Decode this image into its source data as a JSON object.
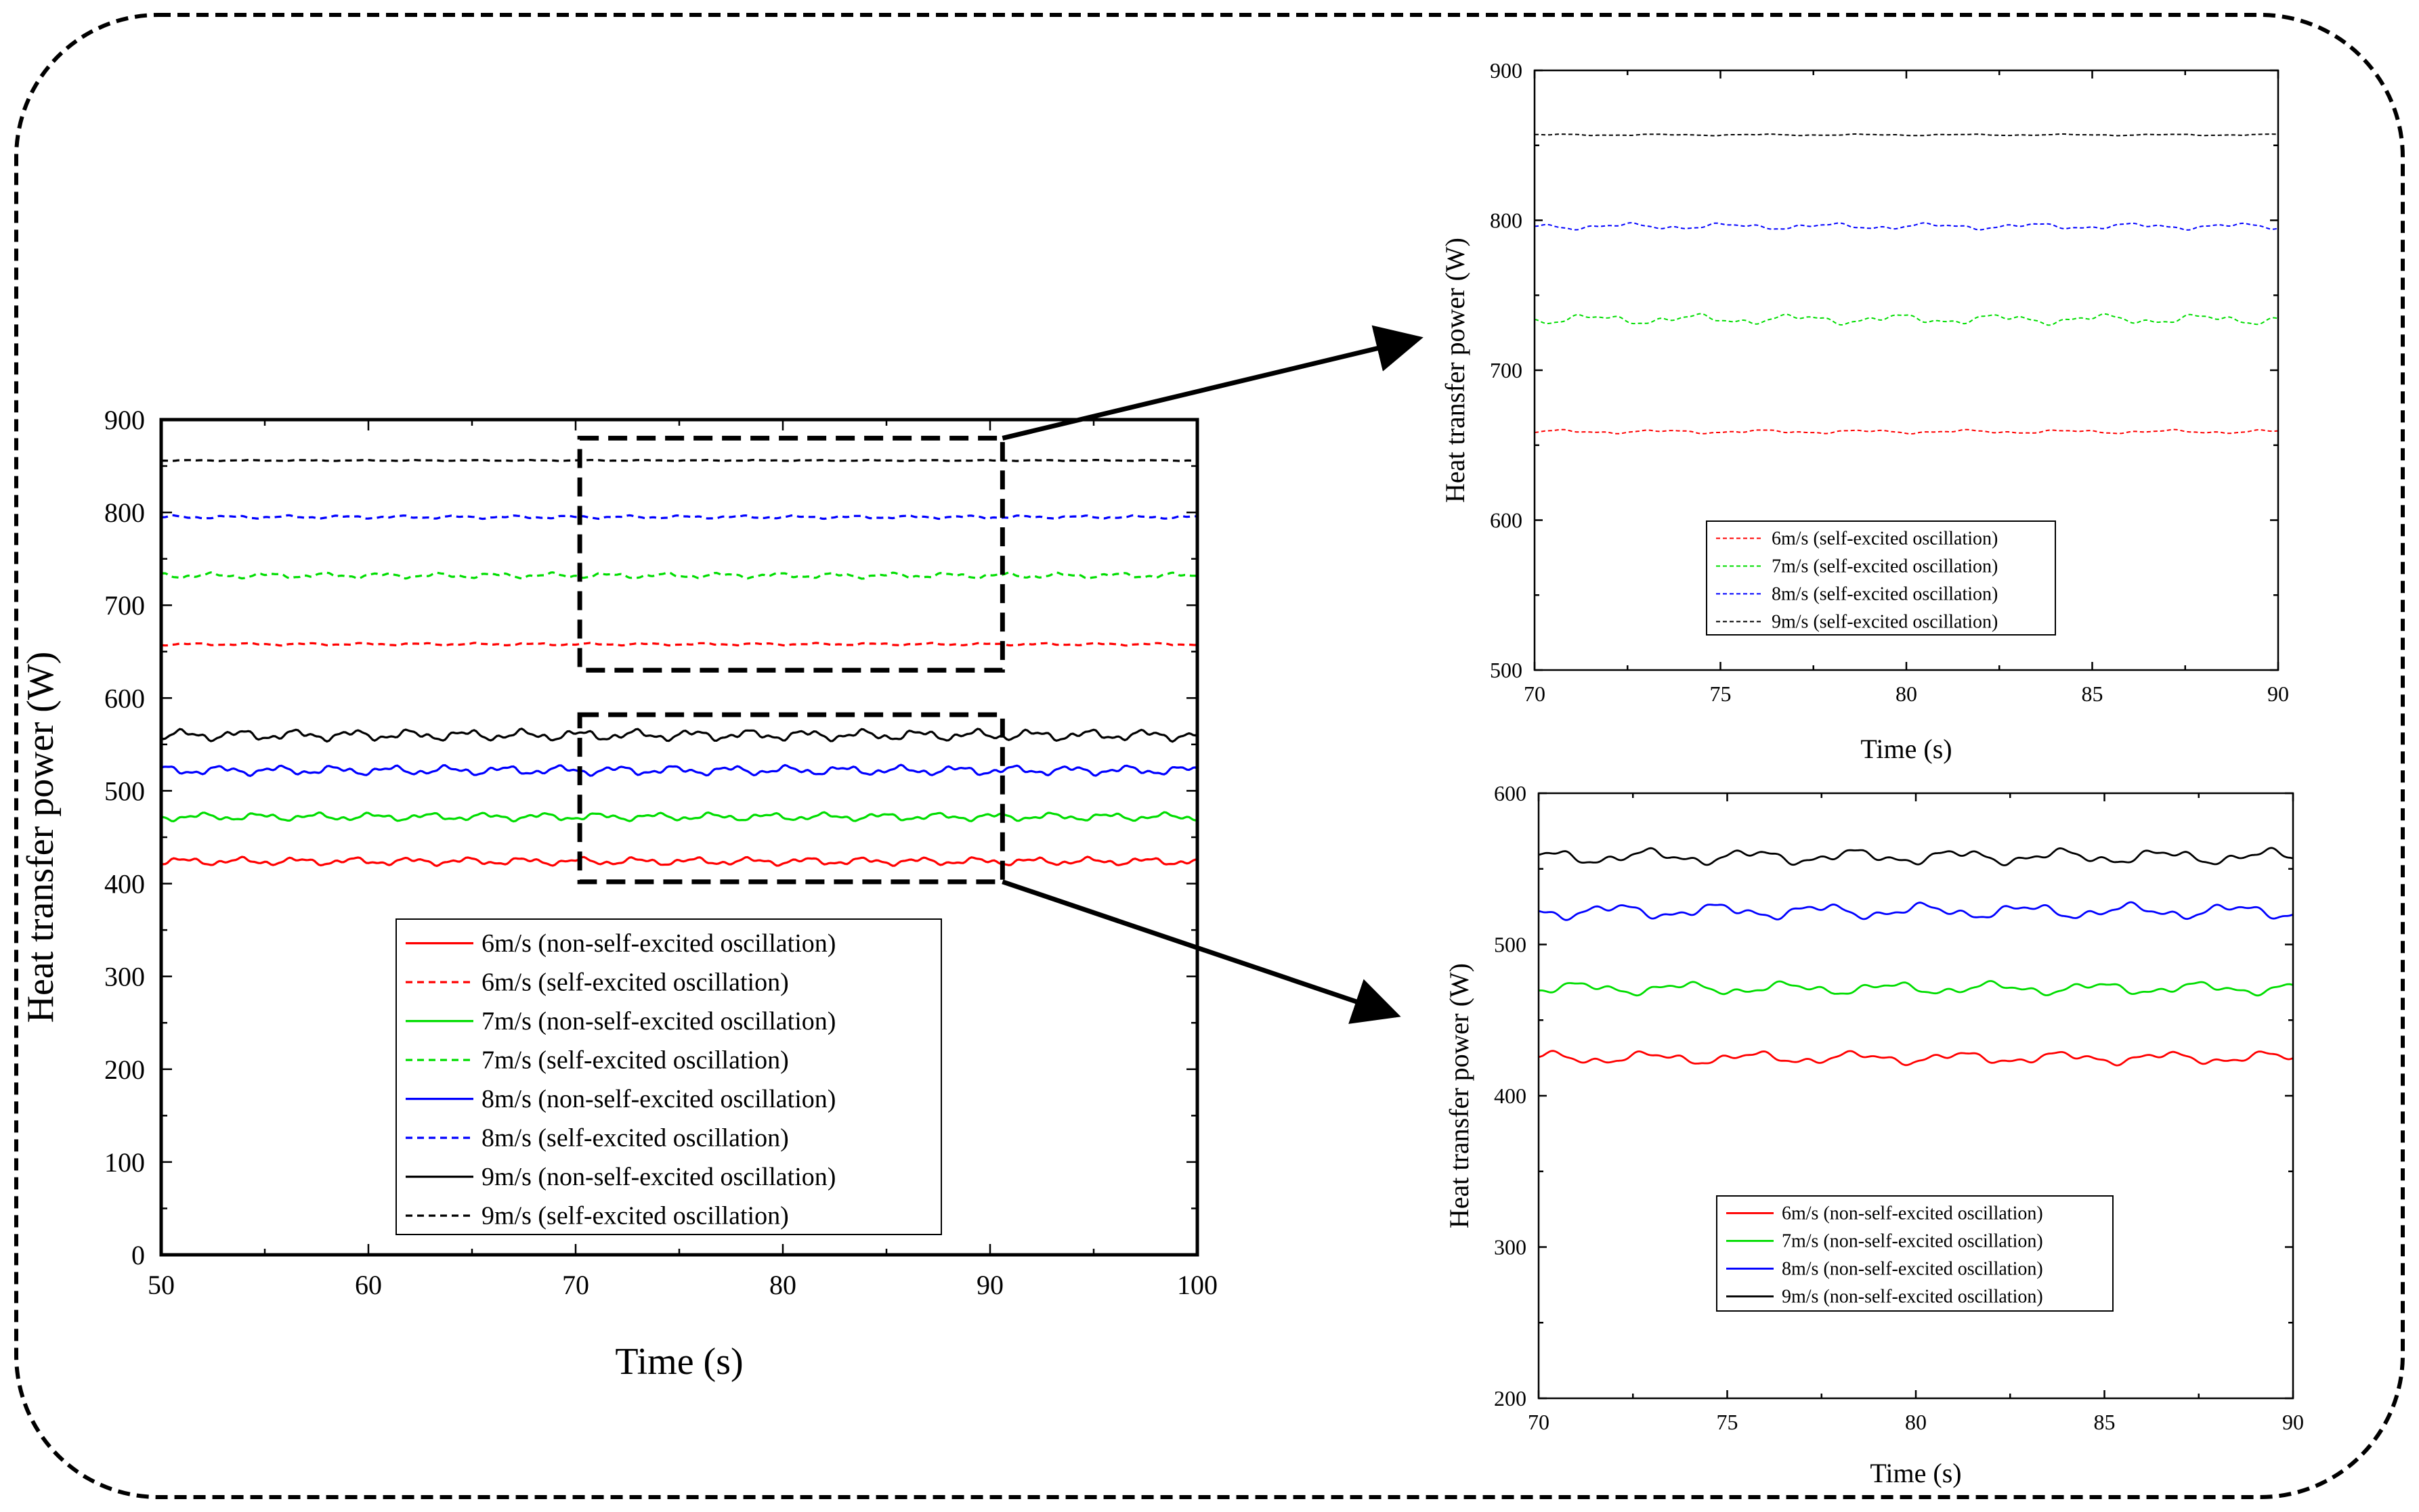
{
  "chart_data": [
    {
      "id": "main",
      "type": "line",
      "title": "",
      "xlabel": "Time (s)",
      "ylabel": "Heat transfer power (W)",
      "xlim": [
        50,
        100
      ],
      "ylim": [
        0,
        900
      ],
      "xticks": [
        50,
        60,
        70,
        80,
        90,
        100
      ],
      "yticks": [
        0,
        100,
        200,
        300,
        400,
        500,
        600,
        700,
        800,
        900
      ],
      "legend_position": "bottom-center",
      "series": [
        {
          "name": "6m/s (non-self-excited oscillation)",
          "color": "#ff0000",
          "style": "solid",
          "mean": 424,
          "amplitude": 5,
          "seed": 1
        },
        {
          "name": "6m/s (self-excited oscillation)",
          "color": "#ff0000",
          "style": "dashed",
          "mean": 658,
          "amplitude": 1.5,
          "seed": 2
        },
        {
          "name": "7m/s (non-self-excited oscillation)",
          "color": "#00dd00",
          "style": "solid",
          "mean": 472,
          "amplitude": 5,
          "seed": 3
        },
        {
          "name": "7m/s (self-excited oscillation)",
          "color": "#00dd00",
          "style": "dashed",
          "mean": 732,
          "amplitude": 3.5,
          "seed": 4
        },
        {
          "name": "8m/s (non-self-excited oscillation)",
          "color": "#0000ff",
          "style": "solid",
          "mean": 522,
          "amplitude": 6,
          "seed": 5
        },
        {
          "name": "8m/s (self-excited oscillation)",
          "color": "#0000ff",
          "style": "dashed",
          "mean": 795,
          "amplitude": 2,
          "seed": 6
        },
        {
          "name": "9m/s (non-self-excited oscillation)",
          "color": "#000000",
          "style": "solid",
          "mean": 560,
          "amplitude": 7,
          "seed": 7
        },
        {
          "name": "9m/s (self-excited oscillation)",
          "color": "#000000",
          "style": "dashed",
          "mean": 856,
          "amplitude": 0.6,
          "seed": 8
        }
      ],
      "zoom_boxes": [
        {
          "x": [
            70.2,
            90.6
          ],
          "y": [
            630,
            880
          ]
        },
        {
          "x": [
            70.2,
            90.6
          ],
          "y": [
            402,
            582
          ]
        }
      ]
    },
    {
      "id": "inset-self-excited",
      "type": "line",
      "title": "",
      "xlabel": "Time (s)",
      "ylabel": "Heat transfer power (W)",
      "xlim": [
        70,
        90
      ],
      "ylim": [
        500,
        900
      ],
      "xticks": [
        70,
        75,
        80,
        85,
        90
      ],
      "yticks": [
        500,
        600,
        700,
        800,
        900
      ],
      "legend_position": "bottom-center",
      "series": [
        {
          "name": "6m/s (self-excited oscillation)",
          "color": "#ff0000",
          "style": "dashed",
          "mean": 659,
          "amplitude": 1.5,
          "seed": 2
        },
        {
          "name": "7m/s (self-excited oscillation)",
          "color": "#00dd00",
          "style": "dashed",
          "mean": 734,
          "amplitude": 4,
          "seed": 4
        },
        {
          "name": "8m/s (self-excited oscillation)",
          "color": "#0000ff",
          "style": "dashed",
          "mean": 796,
          "amplitude": 2.5,
          "seed": 6
        },
        {
          "name": "9m/s (self-excited oscillation)",
          "color": "#000000",
          "style": "dashed",
          "mean": 857,
          "amplitude": 0.6,
          "seed": 8
        }
      ]
    },
    {
      "id": "inset-non-self-excited",
      "type": "line",
      "title": "",
      "xlabel": "Time (s)",
      "ylabel": "Heat transfer power (W)",
      "xlim": [
        70,
        90
      ],
      "ylim": [
        200,
        600
      ],
      "xticks": [
        70,
        75,
        80,
        85,
        90
      ],
      "yticks": [
        200,
        300,
        400,
        500,
        600
      ],
      "legend_position": "bottom-center",
      "series": [
        {
          "name": "6m/s (non-self-excited oscillation)",
          "color": "#ff0000",
          "style": "solid",
          "mean": 425,
          "amplitude": 5,
          "seed": 1
        },
        {
          "name": "7m/s (non-self-excited oscillation)",
          "color": "#00dd00",
          "style": "solid",
          "mean": 471,
          "amplitude": 5,
          "seed": 3
        },
        {
          "name": "8m/s (non-self-excited oscillation)",
          "color": "#0000ff",
          "style": "solid",
          "mean": 522,
          "amplitude": 6,
          "seed": 5
        },
        {
          "name": "9m/s (non-self-excited oscillation)",
          "color": "#000000",
          "style": "solid",
          "mean": 558,
          "amplitude": 6,
          "seed": 7
        }
      ]
    }
  ]
}
